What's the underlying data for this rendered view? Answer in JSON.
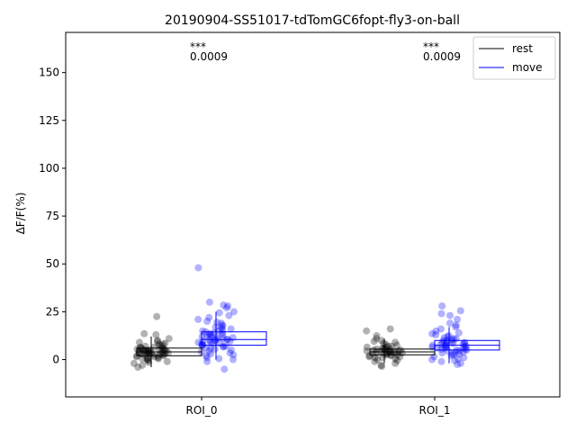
{
  "chart_data": {
    "type": "box_strip",
    "title": "20190904-SS51017-tdTomGC6fopt-fly3-on-ball",
    "xlabel": "",
    "ylabel": "ΔF/F(%)",
    "ylim": [
      -19.5,
      171
    ],
    "yticks": [
      "0",
      "25",
      "50",
      "75",
      "100",
      "125",
      "150"
    ],
    "categories": [
      "ROI_0",
      "ROI_1"
    ],
    "legend": {
      "position": "upper-right",
      "entries": [
        "rest",
        "move"
      ]
    },
    "colors": {
      "rest": "#000000",
      "move": "#0000ff",
      "rest_points": "#000000",
      "move_points": "#0000ff"
    },
    "annotations": [
      {
        "category": "ROI_0",
        "stars": "***",
        "pvalue": "0.0009"
      },
      {
        "category": "ROI_1",
        "stars": "***",
        "pvalue": "0.0009"
      }
    ],
    "series": [
      {
        "name": "rest",
        "boxes": [
          {
            "category": "ROI_0",
            "q1": 2.0,
            "median": 4.0,
            "q3": 6.0,
            "whisker_low": -4.0,
            "whisker_high": 12.0
          },
          {
            "category": "ROI_1",
            "q1": 2.5,
            "median": 4.0,
            "q3": 5.5,
            "whisker_low": -2.0,
            "whisker_high": 11.0
          }
        ],
        "points": [
          {
            "category": "ROI_0",
            "values": [
              22.5,
              13.5,
              13.0,
              11.0,
              10.0,
              9.5,
              9.0,
              8.5,
              8.0,
              8.0,
              7.5,
              7.0,
              7.0,
              6.5,
              6.5,
              6.0,
              6.0,
              6.0,
              5.5,
              5.5,
              5.5,
              5.0,
              5.0,
              5.0,
              5.0,
              4.5,
              4.5,
              4.5,
              4.5,
              4.0,
              4.0,
              4.0,
              4.0,
              4.0,
              3.5,
              3.5,
              3.5,
              3.5,
              3.0,
              3.0,
              3.0,
              3.0,
              2.5,
              2.5,
              2.5,
              2.0,
              2.0,
              2.0,
              1.5,
              1.5,
              1.0,
              1.0,
              0.5,
              0.5,
              0.0,
              0.0,
              -0.5,
              -1.0,
              -1.5,
              -2.0,
              -3.0,
              -4.0
            ]
          },
          {
            "category": "ROI_1",
            "values": [
              16.0,
              15.0,
              12.5,
              11.0,
              10.0,
              9.5,
              9.0,
              8.5,
              8.0,
              7.5,
              7.0,
              7.0,
              6.5,
              6.5,
              6.0,
              6.0,
              5.5,
              5.5,
              5.5,
              5.0,
              5.0,
              5.0,
              4.5,
              4.5,
              4.5,
              4.5,
              4.0,
              4.0,
              4.0,
              4.0,
              3.5,
              3.5,
              3.5,
              3.0,
              3.0,
              3.0,
              2.5,
              2.5,
              2.5,
              2.0,
              2.0,
              1.5,
              1.5,
              1.0,
              1.0,
              0.5,
              0.0,
              -0.5,
              -1.0,
              -2.0,
              -3.0,
              -3.5
            ]
          }
        ]
      },
      {
        "name": "move",
        "boxes": [
          {
            "category": "ROI_0",
            "q1": 7.5,
            "median": 10.5,
            "q3": 14.5,
            "whisker_low": 0.0,
            "whisker_high": 25.0
          },
          {
            "category": "ROI_1",
            "q1": 5.0,
            "median": 7.5,
            "q3": 10.0,
            "whisker_low": -2.0,
            "whisker_high": 17.0
          }
        ],
        "points": [
          {
            "category": "ROI_0",
            "values": [
              48.0,
              30.0,
              28.5,
              28.0,
              27.0,
              25.0,
              24.5,
              23.0,
              22.0,
              21.0,
              20.0,
              19.5,
              19.0,
              18.0,
              17.5,
              17.0,
              16.5,
              16.0,
              15.5,
              15.0,
              15.0,
              14.5,
              14.0,
              14.0,
              13.5,
              13.0,
              13.0,
              12.5,
              12.5,
              12.0,
              12.0,
              11.5,
              11.5,
              11.0,
              11.0,
              10.5,
              10.5,
              10.0,
              10.0,
              10.0,
              9.5,
              9.5,
              9.0,
              9.0,
              8.5,
              8.5,
              8.0,
              8.0,
              7.5,
              7.5,
              7.0,
              7.0,
              6.5,
              6.0,
              6.0,
              5.5,
              5.0,
              4.5,
              4.0,
              3.5,
              3.0,
              2.5,
              2.0,
              1.0,
              0.5,
              0.0,
              -1.0,
              -5.0
            ]
          },
          {
            "category": "ROI_1",
            "values": [
              28.0,
              25.5,
              24.0,
              23.0,
              21.0,
              19.0,
              18.0,
              17.0,
              16.0,
              15.0,
              14.0,
              13.5,
              13.0,
              12.5,
              12.0,
              11.5,
              11.0,
              11.0,
              10.5,
              10.0,
              10.0,
              9.5,
              9.5,
              9.0,
              9.0,
              8.5,
              8.5,
              8.0,
              8.0,
              8.0,
              7.5,
              7.5,
              7.0,
              7.0,
              7.0,
              6.5,
              6.5,
              6.0,
              6.0,
              6.0,
              5.5,
              5.5,
              5.0,
              5.0,
              4.5,
              4.5,
              4.0,
              4.0,
              3.5,
              3.0,
              3.0,
              2.5,
              2.0,
              1.5,
              1.0,
              0.5,
              0.0,
              -0.5,
              -1.0,
              -2.0,
              -2.5
            ]
          }
        ]
      }
    ]
  }
}
